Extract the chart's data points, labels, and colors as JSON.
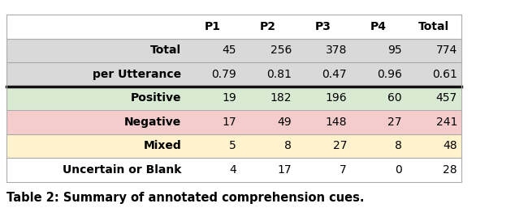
{
  "columns": [
    "",
    "P1",
    "P2",
    "P3",
    "P4",
    "Total"
  ],
  "rows": [
    [
      "Total",
      "45",
      "256",
      "378",
      "95",
      "774"
    ],
    [
      "per Utterance",
      "0.79",
      "0.81",
      "0.47",
      "0.96",
      "0.61"
    ],
    [
      "Positive",
      "19",
      "182",
      "196",
      "60",
      "457"
    ],
    [
      "Negative",
      "17",
      "49",
      "148",
      "27",
      "241"
    ],
    [
      "Mixed",
      "5",
      "8",
      "27",
      "8",
      "48"
    ],
    [
      "Uncertain or Blank",
      "4",
      "17",
      "7",
      "0",
      "28"
    ]
  ],
  "row_colors": [
    "#d9d9d9",
    "#d9d9d9",
    "#d9ead3",
    "#f4cccc",
    "#fff2cc",
    "#ffffff"
  ],
  "header_color": "#ffffff",
  "caption": "Table 2: Summary of annotated comprehension cues.",
  "col_widths": [
    2.2,
    0.68,
    0.68,
    0.68,
    0.68,
    0.68
  ],
  "thick_line_after_row": 1,
  "figsize": [
    6.34,
    2.62
  ],
  "dpi": 100
}
